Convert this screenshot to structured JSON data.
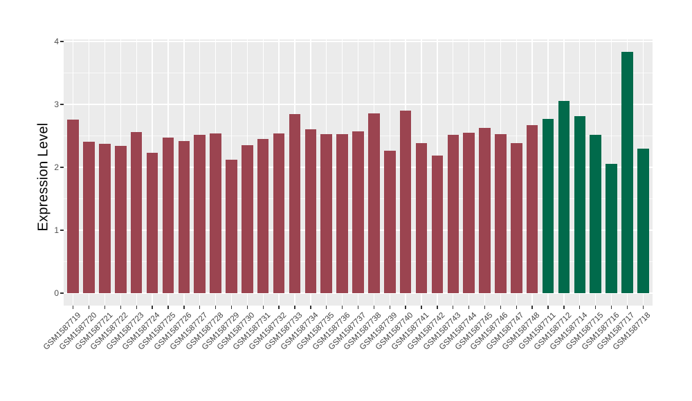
{
  "chart_data": {
    "type": "bar",
    "title": "",
    "xlabel": "",
    "ylabel": "Expression Level",
    "ylim": [
      0,
      4
    ],
    "yticks": [
      0,
      1,
      2,
      3,
      4
    ],
    "grid": "on",
    "legend_position": "none",
    "panel_background_color": "#EBEBEB",
    "gridline_color": "#FFFFFF",
    "categories": [
      "GSM1587719",
      "GSM1587720",
      "GSM1587721",
      "GSM1587722",
      "GSM1587723",
      "GSM1587724",
      "GSM1587725",
      "GSM1587726",
      "GSM1587727",
      "GSM1587728",
      "GSM1587729",
      "GSM1587730",
      "GSM1587731",
      "GSM1587732",
      "GSM1587733",
      "GSM1587734",
      "GSM1587735",
      "GSM1587736",
      "GSM1587737",
      "GSM1587738",
      "GSM1587739",
      "GSM1587740",
      "GSM1587741",
      "GSM1587742",
      "GSM1587743",
      "GSM1587744",
      "GSM1587745",
      "GSM1587746",
      "GSM1587747",
      "GSM1587748",
      "GSM1587711",
      "GSM1587712",
      "GSM1587714",
      "GSM1587715",
      "GSM1587716",
      "GSM1587717",
      "GSM1587718"
    ],
    "values": [
      2.76,
      2.41,
      2.37,
      2.34,
      2.56,
      2.23,
      2.47,
      2.42,
      2.52,
      2.54,
      2.12,
      2.35,
      2.45,
      2.54,
      2.85,
      2.6,
      2.53,
      2.53,
      2.57,
      2.86,
      2.26,
      2.9,
      2.39,
      2.19,
      2.52,
      2.55,
      2.63,
      2.53,
      2.39,
      2.67,
      2.77,
      3.06,
      2.81,
      2.52,
      2.06,
      3.84,
      2.3
    ],
    "bar_groups": [
      "group1",
      "group1",
      "group1",
      "group1",
      "group1",
      "group1",
      "group1",
      "group1",
      "group1",
      "group1",
      "group1",
      "group1",
      "group1",
      "group1",
      "group1",
      "group1",
      "group1",
      "group1",
      "group1",
      "group1",
      "group1",
      "group1",
      "group1",
      "group1",
      "group1",
      "group1",
      "group1",
      "group1",
      "group1",
      "group1",
      "group2",
      "group2",
      "group2",
      "group2",
      "group2",
      "group2",
      "group2"
    ],
    "group_colors": {
      "group1": "#9B4450",
      "group2": "#016A4B"
    }
  }
}
